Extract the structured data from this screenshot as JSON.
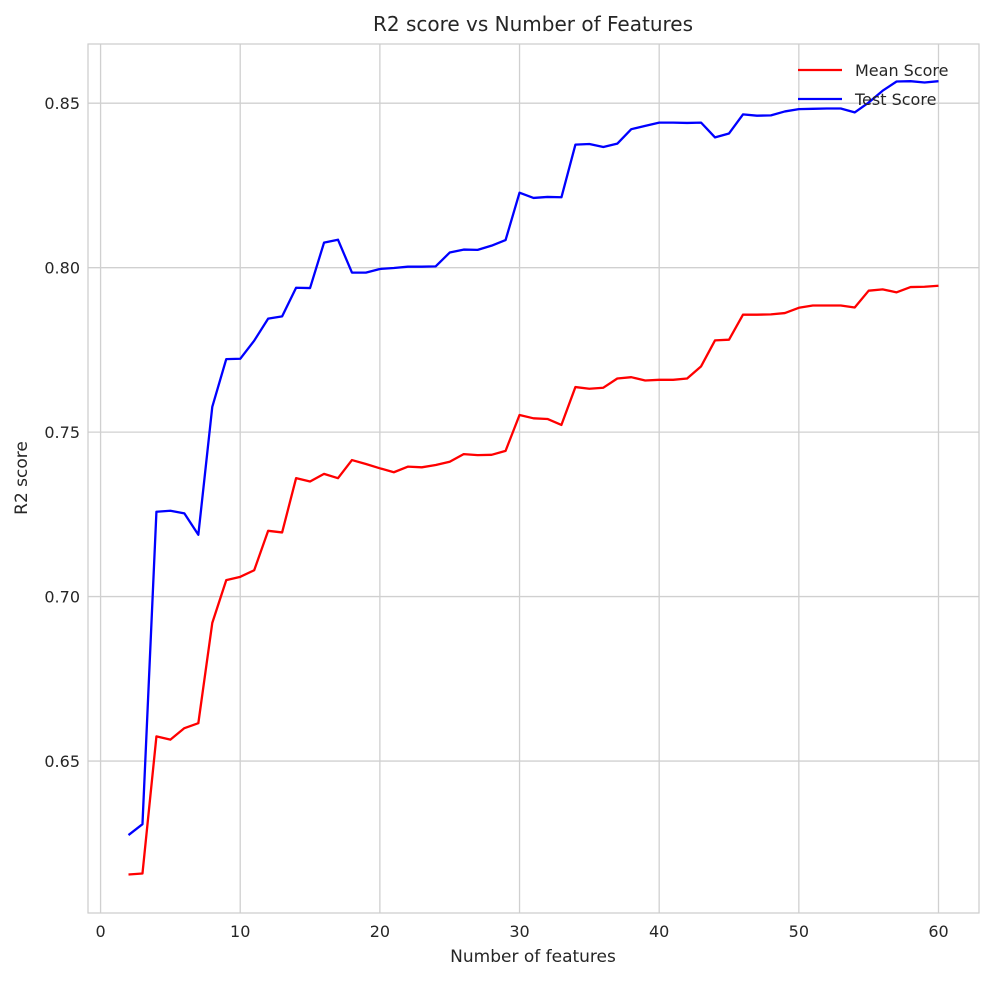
{
  "chart_data": {
    "type": "line",
    "title": "R2 score vs Number of Features",
    "xlabel": "Number of features",
    "ylabel": "R2 score",
    "xlim": [
      -0.9,
      62.9
    ],
    "ylim": [
      0.6038,
      0.868
    ],
    "xticks": [
      0,
      10,
      20,
      30,
      40,
      50,
      60
    ],
    "yticks": [
      0.65,
      0.7,
      0.75,
      0.8,
      0.85
    ],
    "ytick_labels": [
      "0.65",
      "0.70",
      "0.75",
      "0.80",
      "0.85"
    ],
    "grid": true,
    "legend_position": "top-right",
    "x": [
      2,
      3,
      4,
      5,
      6,
      7,
      8,
      9,
      10,
      11,
      12,
      13,
      14,
      15,
      16,
      17,
      18,
      19,
      20,
      21,
      22,
      23,
      24,
      25,
      26,
      27,
      28,
      29,
      30,
      31,
      32,
      33,
      34,
      35,
      36,
      37,
      38,
      39,
      40,
      41,
      42,
      43,
      44,
      45,
      46,
      47,
      48,
      49,
      50,
      51,
      52,
      53,
      54,
      55,
      56,
      57,
      58,
      59,
      60
    ],
    "series": [
      {
        "name": "Mean Score",
        "color": "#ff0000",
        "values": [
          0.6155,
          0.6158,
          0.6575,
          0.6565,
          0.66,
          0.6615,
          0.692,
          0.705,
          0.706,
          0.708,
          0.72,
          0.7195,
          0.736,
          0.735,
          0.7373,
          0.736,
          0.7415,
          0.7403,
          0.739,
          0.7378,
          0.7395,
          0.7393,
          0.74,
          0.741,
          0.7433,
          0.743,
          0.7431,
          0.7443,
          0.7552,
          0.7542,
          0.754,
          0.7522,
          0.7637,
          0.7632,
          0.7635,
          0.7663,
          0.7667,
          0.7657,
          0.7659,
          0.7659,
          0.7663,
          0.77,
          0.7779,
          0.7781,
          0.7857,
          0.7857,
          0.7858,
          0.7862,
          0.7878,
          0.7885,
          0.7885,
          0.7885,
          0.7879,
          0.793,
          0.7934,
          0.7925,
          0.7941,
          0.7942,
          0.7945
        ]
      },
      {
        "name": "Test Score",
        "color": "#0000ff",
        "values": [
          0.6275,
          0.6308,
          0.7258,
          0.7261,
          0.7253,
          0.7188,
          0.7577,
          0.7722,
          0.7723,
          0.7778,
          0.7845,
          0.7852,
          0.7939,
          0.7938,
          0.8076,
          0.8085,
          0.7985,
          0.7985,
          0.7996,
          0.7999,
          0.8003,
          0.8003,
          0.8004,
          0.8046,
          0.8055,
          0.8054,
          0.8067,
          0.8084,
          0.8228,
          0.8212,
          0.8215,
          0.8214,
          0.8374,
          0.8376,
          0.8367,
          0.8377,
          0.8421,
          0.8431,
          0.8441,
          0.8441,
          0.844,
          0.8441,
          0.8396,
          0.8408,
          0.8466,
          0.8462,
          0.8463,
          0.8475,
          0.8482,
          0.8483,
          0.8484,
          0.8484,
          0.8472,
          0.8502,
          0.8538,
          0.8566,
          0.8567,
          0.8563,
          0.8567
        ]
      }
    ]
  }
}
